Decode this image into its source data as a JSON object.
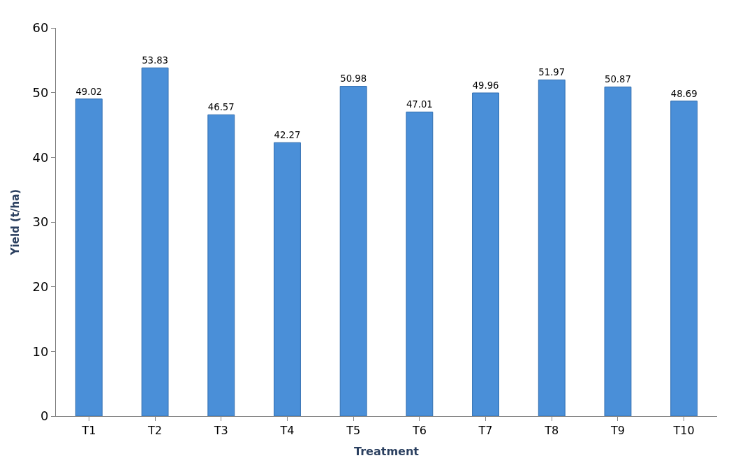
{
  "chart_data": {
    "type": "bar",
    "xlabel": "Treatment",
    "ylabel": "Yield (t/ha)",
    "categories": [
      "T1",
      "T2",
      "T3",
      "T4",
      "T5",
      "T6",
      "T7",
      "T8",
      "T9",
      "T10"
    ],
    "values": [
      49.02,
      53.83,
      46.57,
      42.27,
      50.98,
      47.01,
      49.96,
      51.97,
      50.87,
      48.69
    ],
    "color": "#4a8fd8",
    "ylim": [
      0,
      60
    ],
    "yticks": [
      0,
      10,
      20,
      30,
      40,
      50,
      60
    ],
    "data_labels": true
  }
}
